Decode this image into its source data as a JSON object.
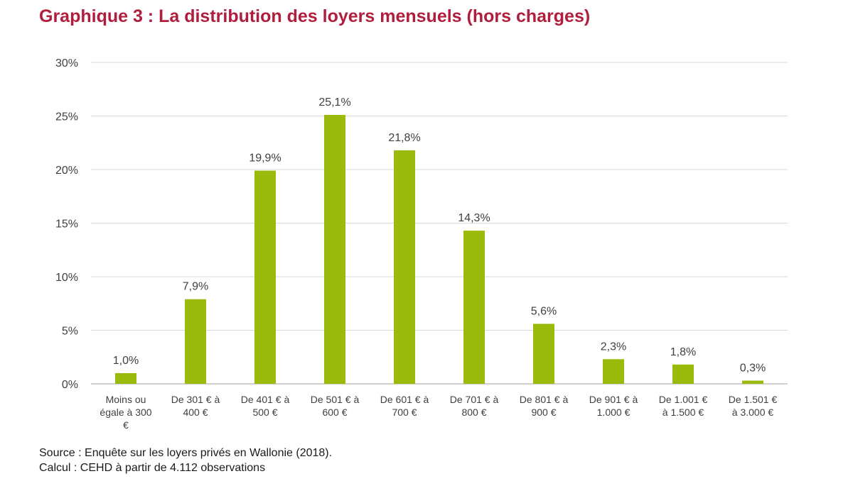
{
  "title": "Graphique 3 : La distribution des loyers mensuels (hors charges)",
  "footer": {
    "source": "Source : Enquête sur les loyers privés en Wallonie (2018).",
    "calcul": "Calcul : CEHD à partir de 4.112 observations"
  },
  "colors": {
    "title": "#b01e3c",
    "bar": "#9bbb0c",
    "grid": "#d9d9d9",
    "axis": "#bfbfbf",
    "text": "#404040"
  },
  "chart_data": {
    "type": "bar",
    "categories": [
      [
        "Moins ou",
        "égale à 300",
        "€"
      ],
      [
        "De 301 € à",
        "400 €"
      ],
      [
        "De 401 € à",
        "500 €"
      ],
      [
        "De 501 € à",
        "600 €"
      ],
      [
        "De 601 € à",
        "700 €"
      ],
      [
        "De 701 € à",
        "800 €"
      ],
      [
        "De 801 € à",
        "900 €"
      ],
      [
        "De 901 € à",
        "1.000 €"
      ],
      [
        "De 1.001 €",
        "à 1.500 €"
      ],
      [
        "De 1.501 €",
        "à 3.000 €"
      ]
    ],
    "values": [
      1.0,
      7.9,
      19.9,
      25.1,
      21.8,
      14.3,
      5.6,
      2.3,
      1.8,
      0.3
    ],
    "value_labels": [
      "1,0%",
      "7,9%",
      "19,9%",
      "25,1%",
      "21,8%",
      "14,3%",
      "5,6%",
      "2,3%",
      "1,8%",
      "0,3%"
    ],
    "yticks": [
      0,
      5,
      10,
      15,
      20,
      25,
      30
    ],
    "ytick_labels": [
      "0%",
      "5%",
      "10%",
      "15%",
      "20%",
      "25%",
      "30%"
    ],
    "ylim": [
      0,
      30
    ],
    "grid": true,
    "legend": "none"
  }
}
